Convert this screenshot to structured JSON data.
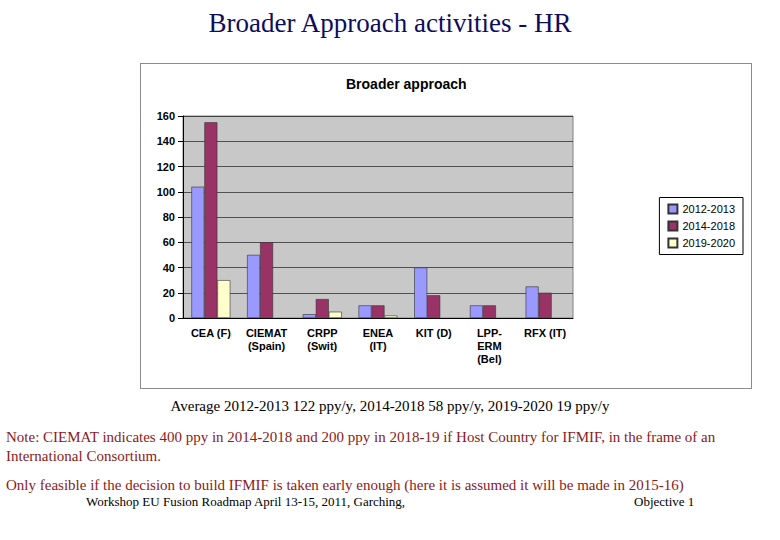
{
  "page": {
    "title": "Broader Approach activities - HR",
    "average": "Average 2012-2013 122 ppy/y, 2014-2018 58 ppy/y, 2019-2020 19 ppy/y",
    "note": "Note: CIEMAT indicates 400 ppy in 2014-2018 and 200 ppy in 2018-19 if Host Country for IFMIF, in the frame of an International Consortium.",
    "note2": "Only feasible if the decision to build IFMIF is taken early enough (here it is assumed it will be made in 2015-16)",
    "footer_left": "Workshop EU Fusion Roadmap April 13-15, 2011, Garching,",
    "footer_right": "Objective 1"
  },
  "chart_data": {
    "type": "bar",
    "title": "Broader approach",
    "categories": [
      "CEA (F)",
      "CIEMAT\n(Spain)",
      "CRPP\n(Swit)",
      "ENEA\n(IT)",
      "KIT (D)",
      "LPP-\nERM\n(Bel)",
      "RFX (IT)"
    ],
    "series": [
      {
        "name": "2012-2013",
        "color": "#9999ff",
        "values": [
          104,
          50,
          3,
          10,
          40,
          10,
          25
        ]
      },
      {
        "name": "2014-2018",
        "color": "#993366",
        "values": [
          155,
          60,
          15,
          10,
          18,
          10,
          20
        ]
      },
      {
        "name": "2019-2020",
        "color": "#ffffcc",
        "values": [
          30,
          null,
          5,
          2,
          null,
          null,
          null
        ]
      }
    ],
    "ylim": [
      0,
      160
    ],
    "yticks": [
      0,
      20,
      40,
      60,
      80,
      100,
      120,
      140,
      160
    ],
    "grid": true,
    "legend": "right"
  }
}
